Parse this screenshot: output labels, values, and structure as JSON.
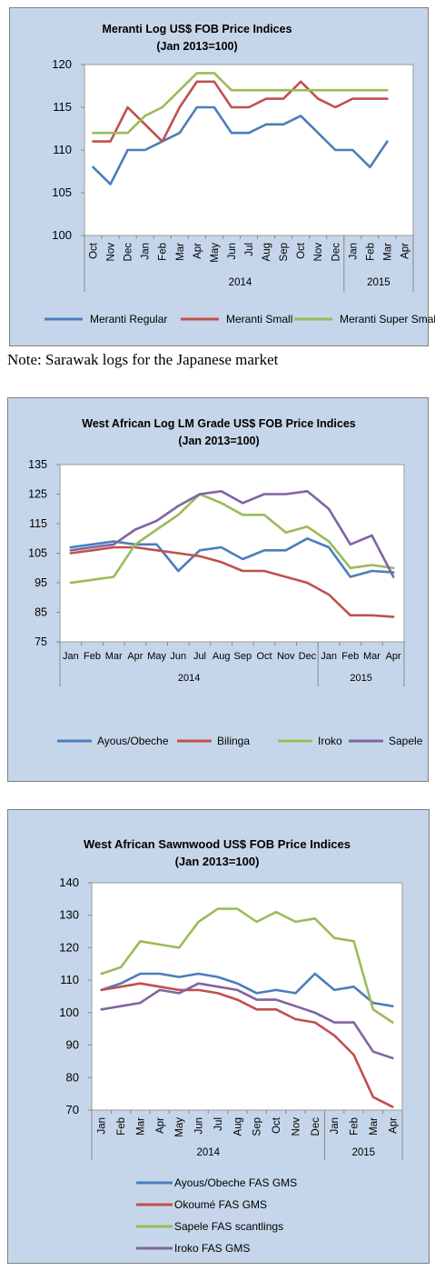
{
  "note": "Note: Sarawak logs for the Japanese market",
  "chart_data": [
    {
      "type": "line",
      "title": "Meranti Log US$ FOB Price Indices",
      "subtitle": "(Jan 2013=100)",
      "categories": [
        "Oct",
        "Nov",
        "Dec",
        "Jan",
        "Feb",
        "Mar",
        "Apr",
        "May",
        "Jun",
        "Jul",
        "Aug",
        "Sep",
        "Oct",
        "Nov",
        "Dec",
        "Jan",
        "Feb",
        "Mar",
        "Apr"
      ],
      "year_groups": [
        {
          "label": "2014",
          "from": 3,
          "to": 14
        },
        {
          "label": "2015",
          "from": 15,
          "to": 18
        }
      ],
      "ylim": [
        100,
        120
      ],
      "yticks": [
        100,
        105,
        110,
        115,
        120
      ],
      "grid": false,
      "legend": "bottom",
      "series": [
        {
          "name": "Meranti Regular",
          "color": "#4a7ebb",
          "values": [
            108,
            106,
            110,
            110,
            111,
            112,
            115,
            115,
            112,
            112,
            113,
            113,
            114,
            112,
            110,
            110,
            108,
            111,
            null
          ]
        },
        {
          "name": "Meranti Small",
          "color": "#c0504d",
          "values": [
            111,
            111,
            115,
            113,
            111,
            115,
            118,
            118,
            115,
            115,
            116,
            116,
            118,
            116,
            115,
            116,
            116,
            116,
            null
          ]
        },
        {
          "name": "Meranti Super Small",
          "color": "#9bbb59",
          "values": [
            112,
            112,
            112,
            114,
            115,
            117,
            119,
            119,
            117,
            117,
            117,
            117,
            117,
            117,
            117,
            117,
            117,
            117,
            null
          ]
        }
      ]
    },
    {
      "type": "line",
      "title": "West African Log LM Grade US$ FOB Price Indices",
      "subtitle": "(Jan 2013=100)",
      "categories": [
        "Jan",
        "Feb",
        "Mar",
        "Apr",
        "May",
        "Jun",
        "Jul",
        "Aug",
        "Sep",
        "Oct",
        "Nov",
        "Dec",
        "Jan",
        "Feb",
        "Mar",
        "Apr"
      ],
      "year_groups": [
        {
          "label": "2014",
          "from": 0,
          "to": 11
        },
        {
          "label": "2015",
          "from": 12,
          "to": 15
        }
      ],
      "ylim": [
        75,
        135
      ],
      "yticks": [
        75,
        85,
        95,
        105,
        115,
        125,
        135
      ],
      "grid": false,
      "legend": "bottom",
      "series": [
        {
          "name": "Ayous/Obeche",
          "color": "#4a7ebb",
          "values": [
            107,
            108,
            109,
            108,
            108,
            99,
            106,
            107,
            103,
            106,
            106,
            110,
            107,
            97,
            99,
            98.5
          ]
        },
        {
          "name": "Bilinga",
          "color": "#c0504d",
          "values": [
            105,
            106,
            107,
            107,
            106,
            105,
            104,
            102,
            99,
            99,
            97,
            95,
            91,
            84,
            84,
            83.5
          ]
        },
        {
          "name": "Iroko",
          "color": "#9bbb59",
          "values": [
            95,
            96,
            97,
            108,
            113,
            118,
            125,
            122,
            118,
            118,
            112,
            114,
            109,
            100,
            101,
            100
          ]
        },
        {
          "name": "Sapele",
          "color": "#8064a2",
          "values": [
            106,
            107,
            108,
            113,
            116,
            121,
            125,
            126,
            122,
            125,
            125,
            126,
            120,
            108,
            111,
            97
          ]
        }
      ]
    },
    {
      "type": "line",
      "title": "West African Sawnwood US$ FOB Price Indices",
      "subtitle": "(Jan 2013=100)",
      "categories": [
        "Jan",
        "Feb",
        "Mar",
        "Apr",
        "May",
        "Jun",
        "Jul",
        "Aug",
        "Sep",
        "Oct",
        "Nov",
        "Dec",
        "Jan",
        "Feb",
        "Mar",
        "Apr"
      ],
      "year_groups": [
        {
          "label": "2014",
          "from": 0,
          "to": 11
        },
        {
          "label": "2015",
          "from": 12,
          "to": 15
        }
      ],
      "ylim": [
        70,
        140
      ],
      "yticks": [
        70,
        80,
        90,
        100,
        110,
        120,
        130,
        140
      ],
      "grid": false,
      "legend": "bottom",
      "series": [
        {
          "name": "Ayous/Obeche  FAS GMS",
          "color": "#4a7ebb",
          "values": [
            107,
            109,
            112,
            112,
            111,
            112,
            111,
            109,
            106,
            107,
            106,
            112,
            107,
            108,
            103,
            102
          ]
        },
        {
          "name": "Okoumé  FAS GMS",
          "color": "#c0504d",
          "values": [
            107,
            108,
            109,
            108,
            107,
            107,
            106,
            104,
            101,
            101,
            98,
            97,
            93,
            87,
            74,
            71
          ]
        },
        {
          "name": "Sapele FAS scantlings",
          "color": "#9bbb59",
          "values": [
            112,
            114,
            122,
            121,
            120,
            128,
            132,
            132,
            128,
            131,
            128,
            129,
            123,
            122,
            101,
            97
          ]
        },
        {
          "name": "Iroko FAS GMS",
          "color": "#8064a2",
          "values": [
            101,
            102,
            103,
            107,
            106,
            109,
            108,
            107,
            104,
            104,
            102,
            100,
            97,
            97,
            88,
            86
          ]
        }
      ]
    }
  ]
}
